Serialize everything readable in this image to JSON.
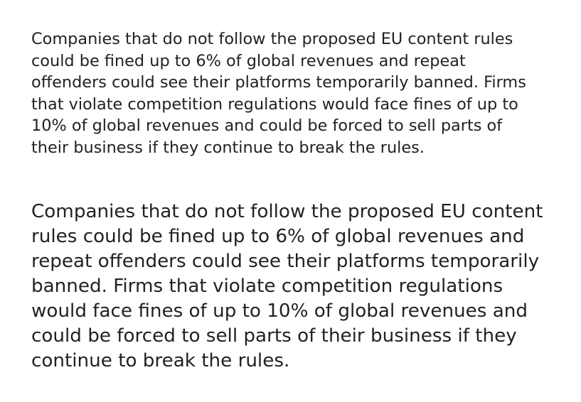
{
  "paragraphs": {
    "small": "Companies that do not follow the proposed EU content rules\ncould be fined up to 6% of global revenues and repeat\noffenders could see their platforms temporarily banned. Firms\nthat violate competition regulations would face fines of up to\n10% of global revenues and could be forced to sell parts of\ntheir business if they continue to break the rules.",
    "large": "Companies that do not follow the proposed EU content\nrules could be fined up to 6% of global revenues and\nrepeat offenders could see their platforms temporarily\nbanned. Firms that violate competition regulations\nwould face fines of up to 10% of global revenues and\ncould be forced to sell parts of their business if they\ncontinue to break the rules."
  }
}
